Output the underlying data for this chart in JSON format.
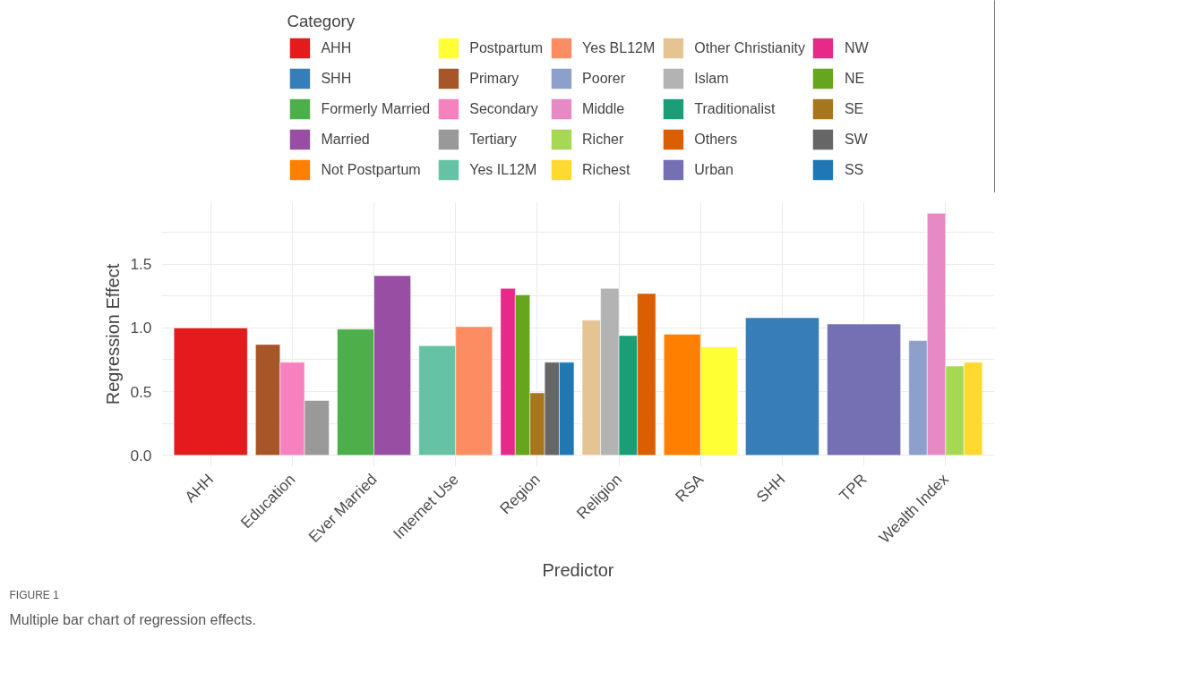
{
  "chart_data": {
    "type": "bar",
    "xlabel": "Predictor",
    "ylabel": "Regression Effect",
    "legend_title": "Category",
    "legend": "top",
    "grid": true,
    "categories": [
      "AHH",
      "Education",
      "Ever Married",
      "Internet Use",
      "Region",
      "Religion",
      "RSA",
      "SHH",
      "TPR",
      "Wealth Index"
    ],
    "ylim": [
      -0.09,
      1.99
    ],
    "yticks": [
      {
        "value": 0,
        "label": "0.0"
      },
      0.5,
      {
        "value": 1,
        "label": "1.0"
      },
      1.5
    ],
    "series": [
      {
        "name": "AHH",
        "color": "#e41a1c",
        "values": [
          1.0,
          null,
          null,
          null,
          null,
          null,
          null,
          null,
          null,
          null
        ]
      },
      {
        "name": "SHH",
        "color": "#377eb8",
        "values": [
          null,
          null,
          null,
          null,
          null,
          null,
          null,
          1.08,
          null,
          null
        ]
      },
      {
        "name": "Formerly Married",
        "color": "#4daf4a",
        "values": [
          null,
          null,
          0.99,
          null,
          null,
          null,
          null,
          null,
          null,
          null
        ]
      },
      {
        "name": "Married",
        "color": "#984ea3",
        "values": [
          null,
          null,
          1.41,
          null,
          null,
          null,
          null,
          null,
          null,
          null
        ]
      },
      {
        "name": "Not Postpartum",
        "color": "#ff7f00",
        "values": [
          null,
          null,
          null,
          null,
          null,
          null,
          0.95,
          null,
          null,
          null
        ]
      },
      {
        "name": "Postpartum",
        "color": "#ffff33",
        "values": [
          null,
          null,
          null,
          null,
          null,
          null,
          0.85,
          null,
          null,
          null
        ]
      },
      {
        "name": "Primary",
        "color": "#a65628",
        "values": [
          null,
          0.87,
          null,
          null,
          null,
          null,
          null,
          null,
          null,
          null
        ]
      },
      {
        "name": "Secondary",
        "color": "#f781bf",
        "values": [
          null,
          0.73,
          null,
          null,
          null,
          null,
          null,
          null,
          null,
          null
        ]
      },
      {
        "name": "Tertiary",
        "color": "#999999",
        "values": [
          null,
          0.43,
          null,
          null,
          null,
          null,
          null,
          null,
          null,
          null
        ]
      },
      {
        "name": "Yes IL12M",
        "color": "#66c2a5",
        "values": [
          null,
          null,
          null,
          0.86,
          null,
          null,
          null,
          null,
          null,
          null
        ]
      },
      {
        "name": "Yes BL12M",
        "color": "#fc8d62",
        "values": [
          null,
          null,
          null,
          1.01,
          null,
          null,
          null,
          null,
          null,
          null
        ]
      },
      {
        "name": "Poorer",
        "color": "#8da0cb",
        "values": [
          null,
          null,
          null,
          null,
          null,
          null,
          null,
          null,
          null,
          0.9
        ]
      },
      {
        "name": "Middle",
        "color": "#e78ac3",
        "values": [
          null,
          null,
          null,
          null,
          null,
          null,
          null,
          null,
          null,
          1.9
        ]
      },
      {
        "name": "Richer",
        "color": "#a6d854",
        "values": [
          null,
          null,
          null,
          null,
          null,
          null,
          null,
          null,
          null,
          0.7
        ]
      },
      {
        "name": "Richest",
        "color": "#ffd92f",
        "values": [
          null,
          null,
          null,
          null,
          null,
          null,
          null,
          null,
          null,
          0.73
        ]
      },
      {
        "name": "Other Christianity",
        "color": "#e5c494",
        "values": [
          null,
          null,
          null,
          null,
          null,
          1.06,
          null,
          null,
          null,
          null
        ]
      },
      {
        "name": "Islam",
        "color": "#b3b3b3",
        "values": [
          null,
          null,
          null,
          null,
          null,
          1.31,
          null,
          null,
          null,
          null
        ]
      },
      {
        "name": "Traditionalist",
        "color": "#1b9e77",
        "values": [
          null,
          null,
          null,
          null,
          null,
          0.94,
          null,
          null,
          null,
          null
        ]
      },
      {
        "name": "Others",
        "color": "#d95f02",
        "values": [
          null,
          null,
          null,
          null,
          null,
          1.27,
          null,
          null,
          null,
          null
        ]
      },
      {
        "name": "Urban",
        "color": "#7570b3",
        "values": [
          null,
          null,
          null,
          null,
          null,
          null,
          null,
          null,
          1.03,
          null
        ]
      },
      {
        "name": "NW",
        "color": "#e7298a",
        "values": [
          null,
          null,
          null,
          null,
          1.31,
          null,
          null,
          null,
          null,
          null
        ]
      },
      {
        "name": "NE",
        "color": "#66a61e",
        "values": [
          null,
          null,
          null,
          null,
          1.26,
          null,
          null,
          null,
          null,
          null
        ]
      },
      {
        "name": "SE",
        "color": "#a6761d",
        "values": [
          null,
          null,
          null,
          null,
          0.49,
          null,
          null,
          null,
          null,
          null
        ]
      },
      {
        "name": "SW",
        "color": "#666666",
        "values": [
          null,
          null,
          null,
          null,
          0.73,
          null,
          null,
          null,
          null,
          null
        ]
      },
      {
        "name": "SS",
        "color": "#1f78b4",
        "values": [
          null,
          null,
          null,
          null,
          0.73,
          null,
          null,
          null,
          null,
          null
        ]
      }
    ],
    "annotations": [
      "FIGURE 1",
      "Multiple bar chart of regression effects."
    ]
  }
}
